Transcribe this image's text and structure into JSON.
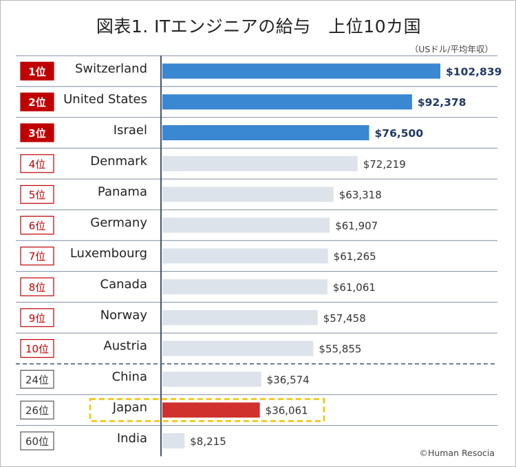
{
  "title": "図表1. ITエンジニアの給与　上位10カ国",
  "unit_note": "（USドル/平均年収）",
  "copyright": "©Human Resocia",
  "colors": {
    "top3_bar": "#3a87d2",
    "other_bar": "#dde3ea",
    "highlight_bar": "#d0312d",
    "top3_badge": "#c00000",
    "top3_value_text": "#1f3864",
    "outline_badge_border": "#c00000",
    "gray_badge_border": "#555555",
    "axis": "#44546a",
    "dashed_separator": "#44546a",
    "highlight_box": "#f2c200"
  },
  "chart_data": {
    "type": "bar",
    "orientation": "horizontal",
    "xlim": [
      0,
      110000
    ],
    "categories": [
      "Switzerland",
      "United States",
      "Israel",
      "Denmark",
      "Panama",
      "Germany",
      "Luxembourg",
      "Canada",
      "Norway",
      "Austria",
      "China",
      "Japan",
      "India"
    ],
    "ranks": [
      "1位",
      "2位",
      "3位",
      "4位",
      "5位",
      "6位",
      "7位",
      "8位",
      "9位",
      "10位",
      "24位",
      "26位",
      "60位"
    ],
    "values": [
      102839,
      92378,
      76500,
      72219,
      63318,
      61907,
      61265,
      61061,
      57458,
      55855,
      36574,
      36061,
      8215
    ],
    "value_labels": [
      "$102,839",
      "$92,378",
      "$76,500",
      "$72,219",
      "$63,318",
      "$61,907",
      "$61,265",
      "$61,061",
      "$57,458",
      "$55,855",
      "$36,574",
      "$36,061",
      "$8,215"
    ],
    "styles": [
      "top3",
      "top3",
      "top3",
      "top10",
      "top10",
      "top10",
      "top10",
      "top10",
      "top10",
      "top10",
      "other",
      "highlight",
      "other"
    ],
    "separator_after_index": 9,
    "highlighted_category": "Japan"
  }
}
